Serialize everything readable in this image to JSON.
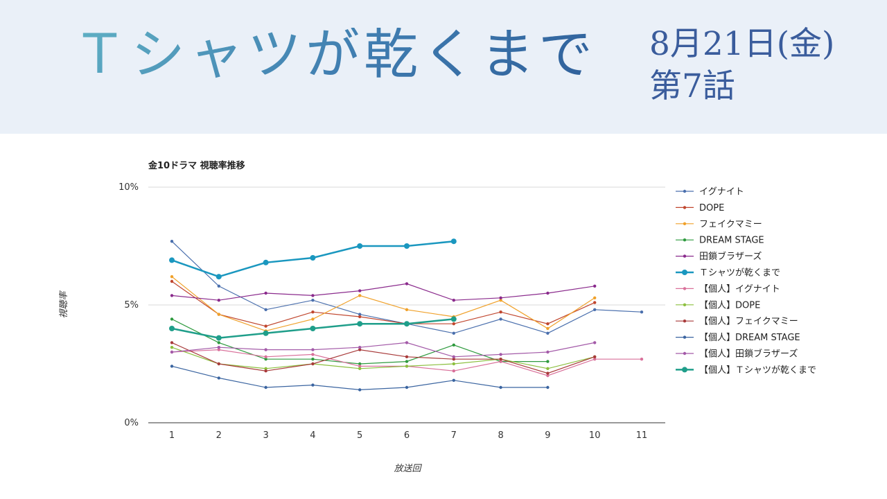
{
  "header": {
    "title": "Ｔシャツが乾くまで",
    "date": "8月21日(金)",
    "episode": "第7話"
  },
  "chart_data": {
    "type": "line",
    "title": "金10ドラマ 視聴率推移",
    "xlabel": "放送回",
    "ylabel": "視聴率",
    "categories": [
      "1",
      "2",
      "3",
      "4",
      "5",
      "6",
      "7",
      "8",
      "9",
      "10",
      "11"
    ],
    "yticks": [
      "0%",
      "5%",
      "10%"
    ],
    "ylim": [
      0,
      10
    ],
    "grid": true,
    "legend_position": "right",
    "series": [
      {
        "name": "イグナイト",
        "color": "#4a6fad",
        "emphasis": false,
        "values": [
          7.7,
          5.8,
          4.8,
          5.2,
          4.6,
          4.2,
          3.8,
          4.4,
          3.8,
          4.8,
          4.7
        ]
      },
      {
        "name": "DOPE",
        "color": "#c0462e",
        "emphasis": false,
        "values": [
          6.0,
          4.6,
          4.1,
          4.7,
          4.5,
          4.2,
          4.2,
          4.7,
          4.2,
          5.1,
          null
        ]
      },
      {
        "name": "フェイクマミー",
        "color": "#f0a12a",
        "emphasis": false,
        "values": [
          6.2,
          4.6,
          3.9,
          4.4,
          5.4,
          4.8,
          4.5,
          5.2,
          4.0,
          5.3,
          null
        ]
      },
      {
        "name": "DREAM STAGE",
        "color": "#2e9a3e",
        "emphasis": false,
        "values": [
          4.4,
          3.4,
          2.7,
          2.7,
          2.5,
          2.6,
          3.3,
          2.6,
          2.6,
          null,
          null
        ]
      },
      {
        "name": "田鎖ブラザーズ",
        "color": "#8a2a8c",
        "emphasis": false,
        "values": [
          5.4,
          5.2,
          5.5,
          5.4,
          5.6,
          5.9,
          5.2,
          5.3,
          5.5,
          5.8,
          null
        ]
      },
      {
        "name": "Ｔシャツが乾くまで",
        "color": "#1a97bf",
        "emphasis": true,
        "values": [
          6.9,
          6.2,
          6.8,
          7.0,
          7.5,
          7.5,
          7.7,
          null,
          null,
          null,
          null
        ]
      },
      {
        "name": "【個人】イグナイト",
        "color": "#d9709a",
        "emphasis": false,
        "values": [
          3.0,
          3.1,
          2.8,
          2.9,
          2.4,
          2.4,
          2.2,
          2.6,
          2.0,
          2.7,
          2.7
        ]
      },
      {
        "name": "【個人】DOPE",
        "color": "#8cbf3f",
        "emphasis": false,
        "values": [
          3.2,
          2.5,
          2.3,
          2.5,
          2.3,
          2.4,
          2.5,
          2.7,
          2.3,
          2.8,
          null
        ]
      },
      {
        "name": "【個人】フェイクマミー",
        "color": "#a83a3a",
        "emphasis": false,
        "values": [
          3.4,
          2.5,
          2.2,
          2.5,
          3.1,
          2.8,
          2.7,
          2.7,
          2.1,
          2.8,
          null
        ]
      },
      {
        "name": "【個人】DREAM STAGE",
        "color": "#3a64a0",
        "emphasis": false,
        "values": [
          2.4,
          1.9,
          1.5,
          1.6,
          1.4,
          1.5,
          1.8,
          1.5,
          1.5,
          null,
          null
        ]
      },
      {
        "name": "【個人】田鎖ブラザーズ",
        "color": "#a35aa8",
        "emphasis": false,
        "values": [
          3.0,
          3.2,
          3.1,
          3.1,
          3.2,
          3.4,
          2.8,
          2.9,
          3.0,
          3.4,
          null
        ]
      },
      {
        "name": "【個人】Ｔシャツが乾くまで",
        "color": "#1f9e8a",
        "emphasis": true,
        "values": [
          4.0,
          3.6,
          3.8,
          4.0,
          4.2,
          4.2,
          4.4,
          null,
          null,
          null,
          null
        ]
      }
    ]
  }
}
